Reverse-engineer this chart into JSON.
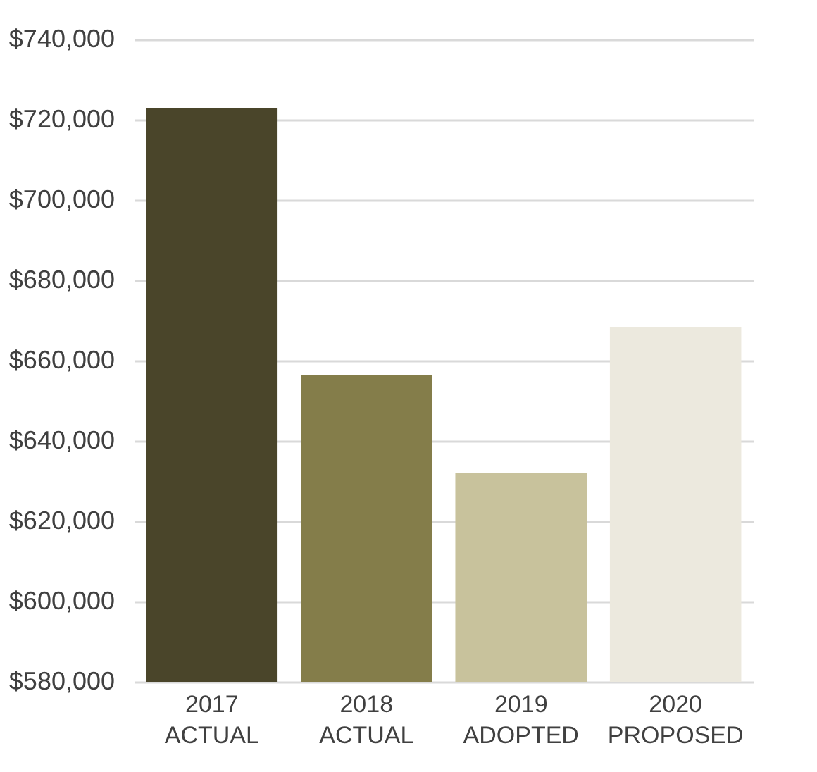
{
  "chart_data": {
    "type": "bar",
    "categories": [
      "2017 ACTUAL",
      "2018 ACTUAL",
      "2019 ADOPTED",
      "2020 PROPOSED"
    ],
    "values": [
      723000,
      656500,
      632000,
      668400
    ],
    "colors": [
      "#4a452a",
      "#847d4a",
      "#c8c29c",
      "#ece9de"
    ],
    "ylim": [
      580000,
      740000
    ],
    "yticks": [
      {
        "value": 580000,
        "label": "$580,000"
      },
      {
        "value": 600000,
        "label": "$600,000"
      },
      {
        "value": 620000,
        "label": "$620,000"
      },
      {
        "value": 640000,
        "label": "$640,000"
      },
      {
        "value": 660000,
        "label": "$660,000"
      },
      {
        "value": 680000,
        "label": "$680,000"
      },
      {
        "value": 700000,
        "label": "$700,000"
      },
      {
        "value": 720000,
        "label": "$720,000"
      },
      {
        "value": 740000,
        "label": "$740,000"
      }
    ],
    "grid": "y",
    "legend": false
  }
}
